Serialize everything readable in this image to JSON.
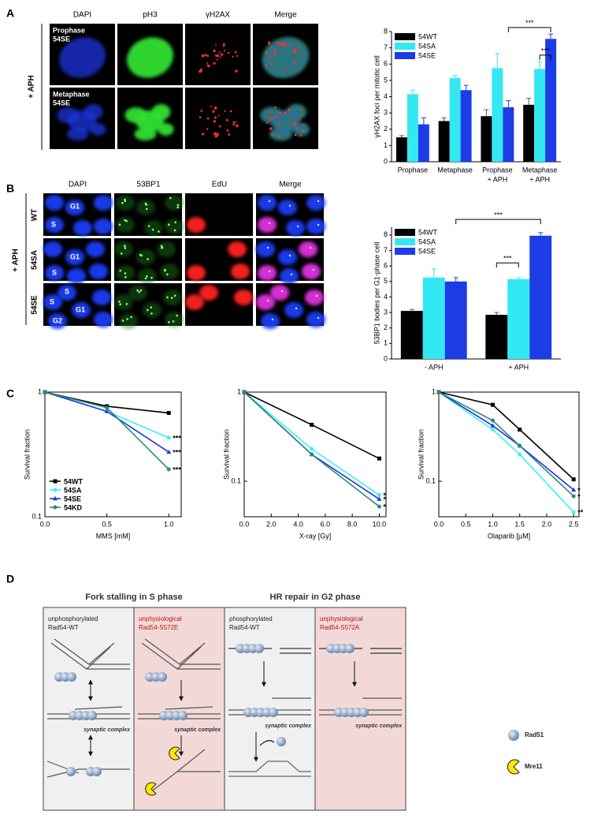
{
  "figure": {
    "panel_labels": [
      "A",
      "B",
      "C",
      "D"
    ],
    "a": {
      "columns": [
        "DAPI",
        "pH3",
        "γH2AX",
        "Merge"
      ],
      "rows": [
        [
          "Prophase",
          "54SE"
        ],
        [
          "Metaphase",
          "54SE"
        ]
      ],
      "condition": "+ APH"
    },
    "b": {
      "columns": [
        "DAPI",
        "53BP1",
        "EdU",
        "Merge"
      ],
      "rows": [
        "WT",
        "54SA",
        "54SE"
      ],
      "condition": "+ APH",
      "cell_labels": [
        [
          "G1",
          "S"
        ],
        [
          "G1",
          "S"
        ],
        [
          "S",
          "G1",
          "S",
          "G2"
        ]
      ]
    },
    "d": {
      "headers": [
        "Fork stalling in S phase",
        "HR repair in G2 phase"
      ],
      "columns": [
        [
          "unphosphorylated",
          "Rad54-WT"
        ],
        [
          "unphysiological",
          "Rad54-S572E"
        ],
        [
          "phosphorylated",
          "Rad54-WT"
        ],
        [
          "unphysiological",
          "Rad54-S572A"
        ]
      ],
      "synaptic_label": "synaptic complex",
      "legend": [
        "Rad51",
        "Mre11"
      ]
    }
  },
  "chart_data": [
    {
      "type": "bar",
      "ylabel": "γH2AX foci per mitotic cell",
      "categories": [
        [
          "Prophase"
        ],
        [
          "Metaphase"
        ],
        [
          "Prophase",
          "+ APH"
        ],
        [
          "Metaphase",
          "+ APH"
        ]
      ],
      "series": [
        {
          "name": "54WT",
          "color": "#000000",
          "values": [
            1.5,
            2.5,
            2.8,
            3.5
          ],
          "errors": [
            0.1,
            0.2,
            0.4,
            0.4
          ]
        },
        {
          "name": "54SA",
          "color": "#33e8f2",
          "values": [
            4.15,
            5.15,
            5.75,
            5.7
          ],
          "errors": [
            0.25,
            0.15,
            0.9,
            0.45
          ]
        },
        {
          "name": "54SE",
          "color": "#1c3ce6",
          "values": [
            2.3,
            4.4,
            3.35,
            7.55
          ],
          "errors": [
            0.4,
            0.3,
            0.4,
            0.3
          ]
        }
      ],
      "ylim": [
        0,
        8
      ],
      "yticks": [
        0,
        1,
        2,
        3,
        4,
        5,
        6,
        7,
        8
      ],
      "legend": "upper-left",
      "annotations": [
        "***",
        "***"
      ]
    },
    {
      "type": "bar",
      "ylabel": "53BP1 bodies per G1-phase cell",
      "categories": [
        [
          "- APH"
        ],
        [
          "+ APH"
        ]
      ],
      "series": [
        {
          "name": "54WT",
          "color": "#000000",
          "values": [
            3.1,
            2.85
          ],
          "errors": [
            0.1,
            0.15
          ]
        },
        {
          "name": "54SA",
          "color": "#33e8f2",
          "values": [
            5.25,
            5.15
          ],
          "errors": [
            0.55,
            0.1
          ]
        },
        {
          "name": "54SE",
          "color": "#1c3ce6",
          "values": [
            5.0,
            7.95
          ],
          "errors": [
            0.25,
            0.2
          ]
        }
      ],
      "ylim": [
        0,
        8.5
      ],
      "yticks": [
        0,
        1,
        2,
        3,
        4,
        5,
        6,
        7,
        8
      ],
      "legend": "upper-left",
      "annotations": [
        "***",
        "***"
      ]
    },
    {
      "type": "line",
      "ylabel": "Survival fraction",
      "xlabel": "MMS [mM]",
      "log_y": true,
      "x": [
        0,
        0.5,
        1.0
      ],
      "series": [
        {
          "name": "54WT",
          "color": "#000000",
          "marker": "square",
          "values": [
            1,
            0.77,
            0.68
          ]
        },
        {
          "name": "54SA",
          "color": "#40f0f5",
          "marker": "circle",
          "values": [
            1,
            0.7,
            0.43
          ],
          "end_label": "***"
        },
        {
          "name": "54SE",
          "color": "#2233dd",
          "marker": "triangle",
          "values": [
            1,
            0.7,
            0.33
          ],
          "end_label": "***"
        },
        {
          "name": "54KD",
          "color": "#2a8a7a",
          "marker": "circle",
          "values": [
            1,
            0.75,
            0.24
          ],
          "end_label": "***"
        }
      ],
      "xlim": [
        0,
        1.1
      ],
      "xticks": [
        {
          "value": 0,
          "label": "0.0"
        },
        {
          "value": 0.5,
          "label": "0.5"
        },
        {
          "value": 1,
          "label": "1.0"
        }
      ],
      "ylim": [
        0.1,
        1
      ],
      "yticks": [
        0.1,
        1
      ],
      "legend": "lower-left"
    },
    {
      "type": "line",
      "ylabel": "Survival fraction",
      "xlabel": "X-ray [Gy]",
      "log_y": true,
      "x": [
        0,
        5,
        10
      ],
      "series": [
        {
          "name": "54WT",
          "color": "#000000",
          "marker": "square",
          "values": [
            1,
            0.43,
            0.18
          ]
        },
        {
          "name": "54SA",
          "color": "#40f0f5",
          "marker": "circle",
          "values": [
            1,
            0.23,
            0.07
          ],
          "end_label": "*"
        },
        {
          "name": "54SE",
          "color": "#2233dd",
          "marker": "triangle",
          "values": [
            1,
            0.2,
            0.063
          ],
          "end_label": "*"
        },
        {
          "name": "54KD",
          "color": "#2a8a7a",
          "marker": "circle",
          "values": [
            1,
            0.2,
            0.052
          ],
          "end_label": "*"
        }
      ],
      "xlim": [
        0,
        10.5
      ],
      "xticks": [
        {
          "value": 0,
          "label": "0.0"
        },
        {
          "value": 2,
          "label": "2.0"
        },
        {
          "value": 4,
          "label": "4.0"
        },
        {
          "value": 6,
          "label": "6.0"
        },
        {
          "value": 8,
          "label": "8.0"
        },
        {
          "value": 10,
          "label": "10.0"
        }
      ],
      "ylim": [
        0.04,
        1
      ],
      "yticks": [
        0.1,
        1
      ]
    },
    {
      "type": "line",
      "ylabel": "Survival fraction",
      "xlabel": "Olaparib [µM]",
      "log_y": true,
      "x": [
        0,
        1.0,
        1.5,
        2.5
      ],
      "series": [
        {
          "name": "54WT",
          "color": "#000000",
          "marker": "square",
          "values": [
            1,
            0.72,
            0.38,
            0.105
          ]
        },
        {
          "name": "54SA",
          "color": "#40f0f5",
          "marker": "circle",
          "values": [
            1,
            0.38,
            0.2,
            0.045
          ],
          "end_label": "**"
        },
        {
          "name": "54SE",
          "color": "#2233dd",
          "marker": "triangle",
          "values": [
            1,
            0.42,
            0.25,
            0.08
          ],
          "end_label": "*"
        },
        {
          "name": "54KD",
          "color": "#2a8a7a",
          "marker": "circle",
          "values": [
            1,
            0.48,
            0.25,
            0.068
          ],
          "end_label": "*"
        }
      ],
      "xlim": [
        0,
        2.6
      ],
      "xticks": [
        {
          "value": 0,
          "label": "0.0"
        },
        {
          "value": 0.5,
          "label": "0.5"
        },
        {
          "value": 1,
          "label": "1.0"
        },
        {
          "value": 1.5,
          "label": "1.5"
        },
        {
          "value": 2,
          "label": "2.0"
        },
        {
          "value": 2.5,
          "label": "2.5"
        }
      ],
      "ylim": [
        0.04,
        1
      ],
      "yticks": [
        0.1,
        1
      ]
    }
  ]
}
